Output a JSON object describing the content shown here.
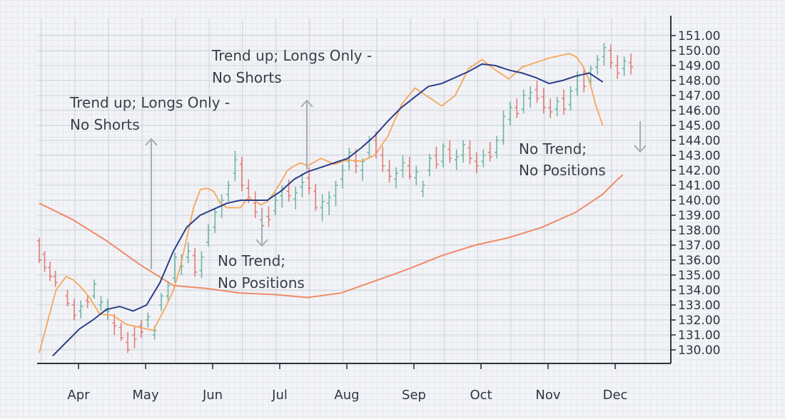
{
  "colors": {
    "up_candle": "#6fb7a6",
    "down_candle": "#e07f76",
    "fast_ma": "#f6a65c",
    "mid_ma": "#2c3f86",
    "slow_ma": "#ef8b68",
    "arrow": "#a8abb3",
    "grid": "#d3d6dd",
    "axis": "#2f3440"
  },
  "chart_data": {
    "type": "line",
    "title": "",
    "xlabel": "",
    "ylabel": "",
    "ylim": [
      129.5,
      152.0
    ],
    "y_ticks": [
      "130.00",
      "131.00",
      "132.00",
      "133.00",
      "134.00",
      "135.00",
      "136.00",
      "137.00",
      "138.00",
      "139.00",
      "140.00",
      "141.00",
      "142.00",
      "143.00",
      "144.00",
      "145.00",
      "146.00",
      "147.00",
      "148.00",
      "149.00",
      "150.00",
      "151.00"
    ],
    "month_labels": [
      "Apr",
      "May",
      "Jun",
      "Jul",
      "Aug",
      "Sep",
      "Oct",
      "Nov",
      "Dec"
    ],
    "grid": true,
    "series": [
      {
        "key": "fast",
        "x": [
          0.0,
          0.25,
          0.4,
          0.5,
          0.6,
          0.75,
          0.9,
          1.1,
          1.3,
          1.5,
          1.7,
          1.9,
          2.0,
          2.1,
          2.2,
          2.3,
          2.4,
          2.5,
          2.6,
          2.7,
          2.8,
          2.9,
          3.0,
          3.1,
          3.2,
          3.3,
          3.4,
          3.5,
          3.6,
          3.7,
          3.8,
          3.9,
          4.0,
          4.2,
          4.4,
          4.6,
          4.8,
          5.0,
          5.2,
          5.4,
          5.6,
          5.8,
          6.0,
          6.2,
          6.4,
          6.6,
          6.8,
          7.0,
          7.2,
          7.4,
          7.6,
          7.8,
          7.9,
          8.0,
          8.1,
          8.2,
          8.3,
          8.4,
          8.5,
          8.6,
          8.7
        ],
        "values": [
          129.8,
          134.0,
          134.9,
          134.7,
          134.3,
          133.5,
          132.4,
          132.3,
          131.7,
          131.5,
          131.3,
          133.0,
          134.0,
          135.5,
          137.5,
          139.5,
          140.7,
          140.8,
          140.6,
          139.8,
          139.5,
          139.5,
          139.5,
          140.1,
          140.0,
          139.7,
          139.9,
          140.5,
          141.2,
          142.0,
          142.3,
          142.5,
          142.3,
          142.8,
          142.4,
          142.7,
          142.6,
          143.0,
          144.3,
          146.4,
          147.5,
          146.9,
          146.3,
          147.0,
          148.8,
          149.4,
          148.7,
          148.1,
          148.9,
          149.2,
          149.5,
          149.7,
          149.8,
          149.6,
          149.0,
          148.0,
          146.3,
          145.0,
          null,
          null,
          null
        ]
      },
      {
        "key": "mid",
        "x": [
          0.2,
          0.4,
          0.6,
          0.8,
          1.0,
          1.2,
          1.4,
          1.6,
          1.8,
          2.0,
          2.2,
          2.4,
          2.6,
          2.8,
          3.0,
          3.2,
          3.4,
          3.6,
          3.8,
          4.0,
          4.2,
          4.4,
          4.6,
          4.8,
          5.0,
          5.2,
          5.4,
          5.6,
          5.8,
          6.0,
          6.2,
          6.4,
          6.6,
          6.8,
          7.0,
          7.2,
          7.4,
          7.6,
          7.8,
          8.0,
          8.2,
          8.4
        ],
        "values": [
          129.6,
          130.5,
          131.4,
          132.0,
          132.7,
          132.9,
          132.6,
          133.0,
          134.5,
          136.6,
          138.2,
          139.0,
          139.4,
          139.8,
          140.0,
          140.0,
          140.0,
          140.6,
          141.4,
          141.9,
          142.2,
          142.5,
          142.8,
          143.5,
          144.3,
          145.3,
          146.2,
          146.9,
          147.6,
          147.8,
          148.2,
          148.6,
          149.1,
          149.0,
          148.7,
          148.5,
          148.2,
          147.8,
          148.0,
          148.3,
          148.5,
          147.9
        ]
      },
      {
        "key": "slow",
        "x": [
          0.0,
          0.5,
          1.0,
          1.5,
          2.0,
          2.5,
          3.0,
          3.5,
          4.0,
          4.5,
          5.0,
          5.5,
          6.0,
          6.5,
          7.0,
          7.5,
          8.0,
          8.4,
          8.6,
          8.7
        ],
        "values": [
          139.8,
          138.7,
          137.3,
          135.7,
          134.3,
          134.1,
          133.8,
          133.7,
          133.5,
          133.8,
          134.6,
          135.4,
          136.3,
          137.0,
          137.5,
          138.2,
          139.2,
          140.4,
          141.3,
          141.7
        ]
      }
    ],
    "ohlc": [
      [
        0.0,
        137.3,
        137.5,
        135.8,
        136.0
      ],
      [
        0.08,
        136.4,
        136.6,
        135.2,
        135.5
      ],
      [
        0.16,
        135.5,
        135.9,
        134.6,
        134.9
      ],
      [
        0.24,
        134.9,
        135.3,
        134.2,
        134.5
      ],
      [
        0.42,
        133.6,
        134.0,
        132.9,
        133.1
      ],
      [
        0.52,
        133.0,
        133.4,
        132.0,
        132.3
      ],
      [
        0.62,
        132.6,
        133.3,
        132.1,
        132.9
      ],
      [
        0.72,
        133.3,
        133.6,
        132.8,
        133.2
      ],
      [
        0.82,
        133.6,
        134.7,
        133.4,
        134.4
      ],
      [
        0.92,
        133.0,
        133.6,
        132.6,
        133.2
      ],
      [
        1.02,
        132.6,
        133.4,
        132.0,
        132.6
      ],
      [
        1.12,
        131.8,
        132.4,
        131.0,
        131.6
      ],
      [
        1.22,
        131.5,
        131.8,
        130.6,
        130.8
      ],
      [
        1.32,
        130.5,
        131.2,
        129.8,
        130.0
      ],
      [
        1.42,
        131.0,
        131.6,
        130.1,
        130.7
      ],
      [
        1.52,
        131.6,
        132.0,
        130.8,
        131.2
      ],
      [
        1.62,
        132.0,
        132.5,
        131.5,
        132.2
      ],
      [
        1.72,
        131.0,
        131.6,
        130.7,
        131.3
      ],
      [
        1.82,
        133.0,
        133.8,
        132.6,
        133.6
      ],
      [
        1.92,
        133.6,
        134.6,
        133.2,
        134.3
      ],
      [
        2.02,
        134.8,
        136.5,
        134.5,
        136.2
      ],
      [
        2.12,
        135.5,
        136.4,
        135.0,
        135.6
      ],
      [
        2.22,
        136.2,
        137.2,
        135.8,
        136.6
      ],
      [
        2.32,
        136.3,
        136.8,
        134.9,
        135.2
      ],
      [
        2.42,
        135.3,
        136.6,
        134.8,
        136.2
      ],
      [
        2.52,
        137.2,
        138.4,
        136.9,
        138.0
      ],
      [
        2.62,
        138.2,
        139.5,
        137.8,
        139.2
      ],
      [
        2.72,
        139.6,
        140.4,
        138.8,
        140.0
      ],
      [
        2.82,
        140.4,
        141.3,
        139.9,
        141.0
      ],
      [
        2.92,
        141.8,
        143.3,
        141.3,
        142.7
      ],
      [
        3.02,
        142.4,
        142.9,
        140.6,
        141.0
      ],
      [
        3.12,
        140.8,
        141.4,
        139.8,
        140.2
      ],
      [
        3.22,
        139.8,
        140.6,
        138.8,
        139.2
      ],
      [
        3.32,
        138.7,
        139.5,
        137.8,
        138.3
      ],
      [
        3.42,
        138.9,
        139.6,
        138.2,
        138.7
      ],
      [
        3.52,
        139.3,
        140.5,
        139.0,
        140.0
      ],
      [
        3.62,
        140.3,
        141.0,
        139.5,
        140.7
      ],
      [
        3.72,
        140.6,
        141.4,
        139.9,
        140.3
      ],
      [
        3.82,
        140.1,
        140.9,
        139.4,
        140.5
      ],
      [
        3.92,
        140.9,
        141.8,
        140.2,
        141.2
      ],
      [
        4.02,
        141.5,
        142.2,
        140.4,
        140.8
      ],
      [
        4.12,
        140.6,
        141.1,
        139.3,
        139.5
      ],
      [
        4.22,
        139.5,
        140.4,
        138.6,
        139.9
      ],
      [
        4.32,
        139.8,
        140.6,
        139.0,
        140.2
      ],
      [
        4.42,
        140.3,
        141.3,
        139.6,
        141.0
      ],
      [
        4.52,
        141.4,
        142.4,
        140.8,
        142.0
      ],
      [
        4.62,
        142.6,
        143.5,
        142.0,
        143.2
      ],
      [
        4.72,
        142.6,
        143.4,
        141.8,
        142.3
      ],
      [
        4.82,
        142.0,
        142.8,
        141.3,
        142.6
      ],
      [
        4.92,
        143.2,
        144.3,
        142.8,
        144.0
      ],
      [
        5.02,
        144.0,
        144.6,
        142.8,
        143.2
      ],
      [
        5.12,
        143.0,
        143.6,
        141.9,
        142.3
      ],
      [
        5.22,
        142.0,
        142.7,
        141.2,
        141.6
      ],
      [
        5.32,
        141.4,
        142.2,
        140.8,
        141.8
      ],
      [
        5.42,
        142.0,
        143.0,
        141.5,
        142.5
      ],
      [
        5.52,
        142.3,
        142.9,
        141.4,
        141.6
      ],
      [
        5.62,
        141.5,
        142.3,
        141.0,
        141.9
      ],
      [
        5.72,
        140.6,
        141.3,
        140.2,
        141.0
      ],
      [
        5.82,
        142.0,
        143.1,
        141.6,
        142.8
      ],
      [
        5.92,
        143.0,
        143.6,
        142.1,
        142.4
      ],
      [
        6.02,
        142.6,
        143.8,
        142.2,
        143.6
      ],
      [
        6.12,
        143.4,
        144.0,
        142.5,
        142.8
      ],
      [
        6.22,
        142.7,
        143.4,
        142.0,
        142.9
      ],
      [
        6.32,
        143.0,
        144.0,
        142.5,
        143.7
      ],
      [
        6.42,
        143.5,
        144.0,
        142.4,
        142.8
      ],
      [
        6.52,
        142.6,
        143.2,
        141.8,
        142.3
      ],
      [
        6.62,
        142.6,
        143.4,
        142.2,
        143.0
      ],
      [
        6.72,
        143.2,
        143.9,
        142.6,
        142.9
      ],
      [
        6.82,
        143.2,
        144.3,
        142.8,
        144.0
      ],
      [
        6.92,
        144.0,
        146.0,
        143.7,
        145.6
      ],
      [
        7.02,
        145.4,
        146.6,
        145.0,
        146.2
      ],
      [
        7.12,
        146.2,
        146.8,
        145.5,
        145.8
      ],
      [
        7.22,
        146.1,
        147.4,
        145.8,
        147.0
      ],
      [
        7.32,
        146.8,
        147.6,
        146.2,
        147.2
      ],
      [
        7.42,
        147.4,
        148.0,
        146.5,
        146.8
      ],
      [
        7.52,
        146.9,
        147.5,
        145.8,
        146.2
      ],
      [
        7.62,
        146.2,
        146.8,
        145.5,
        145.9
      ],
      [
        7.72,
        146.1,
        146.9,
        145.6,
        146.6
      ],
      [
        7.82,
        146.8,
        147.4,
        145.7,
        146.1
      ],
      [
        7.92,
        146.4,
        147.6,
        146.0,
        147.3
      ],
      [
        8.02,
        147.4,
        148.6,
        147.0,
        148.3
      ],
      [
        8.12,
        148.4,
        148.9,
        147.2,
        147.6
      ],
      [
        8.22,
        148.0,
        149.0,
        147.6,
        148.8
      ],
      [
        8.32,
        148.9,
        149.7,
        148.4,
        149.4
      ],
      [
        8.42,
        149.6,
        150.5,
        149.0,
        150.2
      ],
      [
        8.52,
        150.0,
        150.4,
        148.8,
        149.2
      ],
      [
        8.62,
        149.0,
        149.7,
        148.1,
        148.5
      ],
      [
        8.72,
        148.8,
        149.6,
        148.3,
        149.3
      ],
      [
        8.82,
        149.2,
        149.8,
        148.4,
        148.9
      ]
    ],
    "annotations": [
      {
        "lines": [
          "Trend up; Longs Only -",
          "No Shorts"
        ]
      },
      {
        "lines": [
          "Trend up; Longs Only -",
          "No Shorts"
        ]
      },
      {
        "lines": [
          "No Trend;",
          "No Positions"
        ]
      },
      {
        "lines": [
          "No Trend;",
          "No Positions"
        ]
      }
    ]
  }
}
